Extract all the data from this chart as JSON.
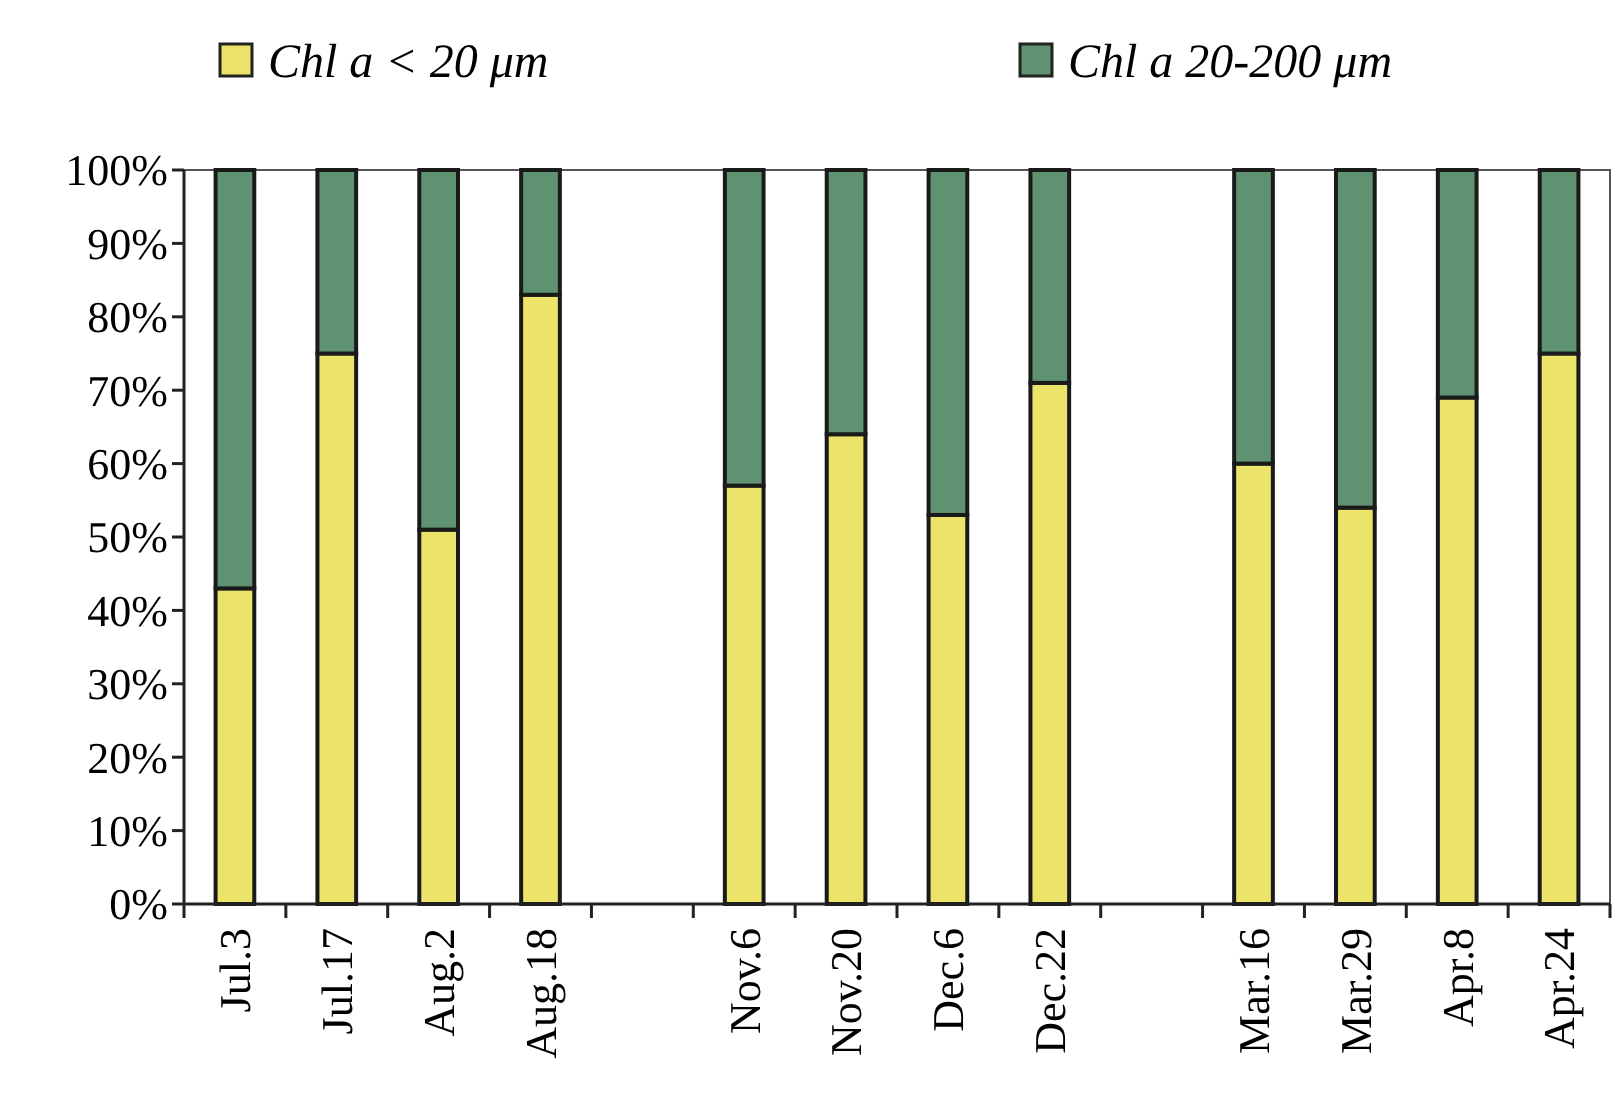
{
  "chart_data": {
    "type": "bar",
    "stacked": true,
    "categories": [
      "Jul.3",
      "Jul.17",
      "Aug.2",
      "Aug.18",
      null,
      "Nov.6",
      "Nov.20",
      "Dec.6",
      "Dec.22",
      null,
      "Mar.16",
      "Mar.29",
      "Apr.8",
      "Apr.24"
    ],
    "series": [
      {
        "name": "Chl a < 20 μm",
        "color": "#ece46a",
        "values": [
          43,
          75,
          51,
          83,
          null,
          57,
          64,
          53,
          71,
          null,
          60,
          54,
          69,
          75
        ]
      },
      {
        "name": "Chl a 20-200 μm",
        "color": "#5e9270",
        "values": [
          57,
          25,
          49,
          17,
          null,
          43,
          36,
          47,
          29,
          null,
          40,
          46,
          31,
          25
        ]
      }
    ],
    "ylim": [
      0,
      100
    ],
    "yticks": [
      {
        "value": 0,
        "label": "0%"
      },
      {
        "value": 10,
        "label": "10%"
      },
      {
        "value": 20,
        "label": "20%"
      },
      {
        "value": 30,
        "label": "30%"
      },
      {
        "value": 40,
        "label": "40%"
      },
      {
        "value": 50,
        "label": "50%"
      },
      {
        "value": 60,
        "label": "60%"
      },
      {
        "value": 70,
        "label": "70%"
      },
      {
        "value": 80,
        "label": "80%"
      },
      {
        "value": 90,
        "label": "90%"
      },
      {
        "value": 100,
        "label": "100%"
      }
    ],
    "legend": "top",
    "grid": false
  }
}
